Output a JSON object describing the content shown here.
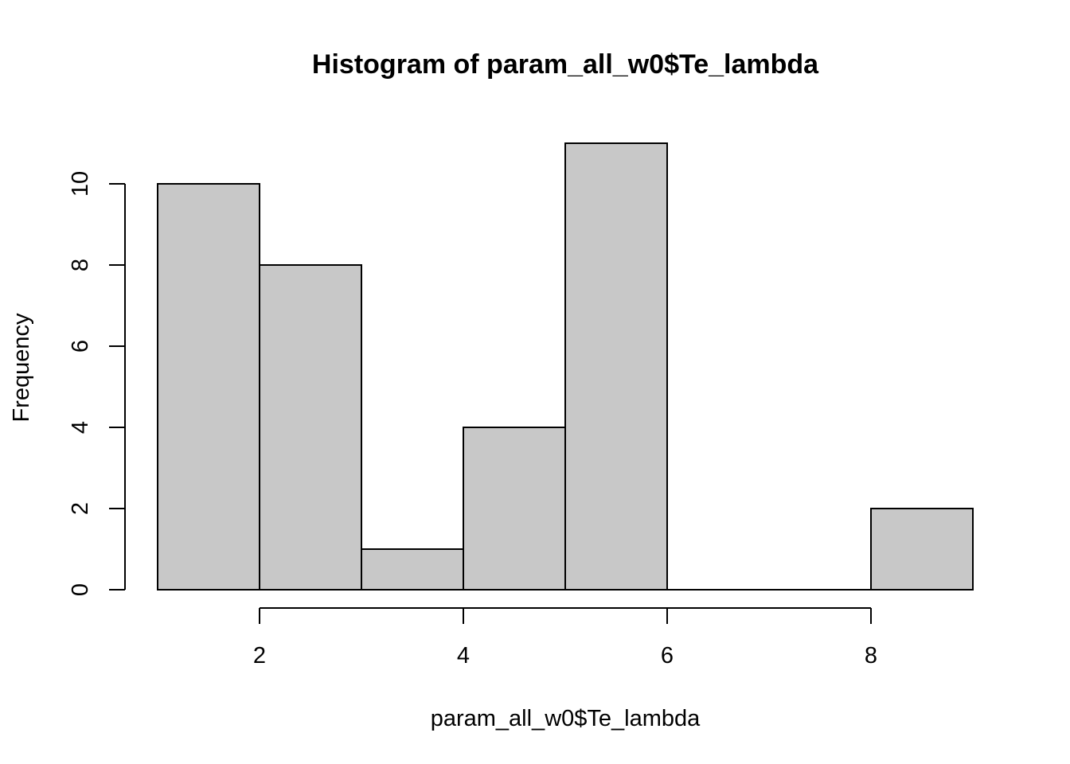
{
  "chart_data": {
    "type": "bar",
    "title": "Histogram of param_all_w0$Te_lambda",
    "xlabel": "param_all_w0$Te_lambda",
    "ylabel": "Frequency",
    "bins": [
      {
        "x0": 1,
        "x1": 2,
        "count": 10
      },
      {
        "x0": 2,
        "x1": 3,
        "count": 8
      },
      {
        "x0": 3,
        "x1": 4,
        "count": 1
      },
      {
        "x0": 4,
        "x1": 5,
        "count": 4
      },
      {
        "x0": 5,
        "x1": 6,
        "count": 11
      },
      {
        "x0": 6,
        "x1": 7,
        "count": 0
      },
      {
        "x0": 7,
        "x1": 8,
        "count": 0
      },
      {
        "x0": 8,
        "x1": 9,
        "count": 2
      }
    ],
    "xlim": [
      1,
      9
    ],
    "ylim": [
      0,
      11
    ],
    "x_ticks": [
      2,
      4,
      6,
      8
    ],
    "y_ticks": [
      0,
      2,
      4,
      6,
      8,
      10
    ],
    "bar_fill": "#c8c8c8",
    "bar_stroke": "#000000",
    "grid": false,
    "legend": "none"
  }
}
